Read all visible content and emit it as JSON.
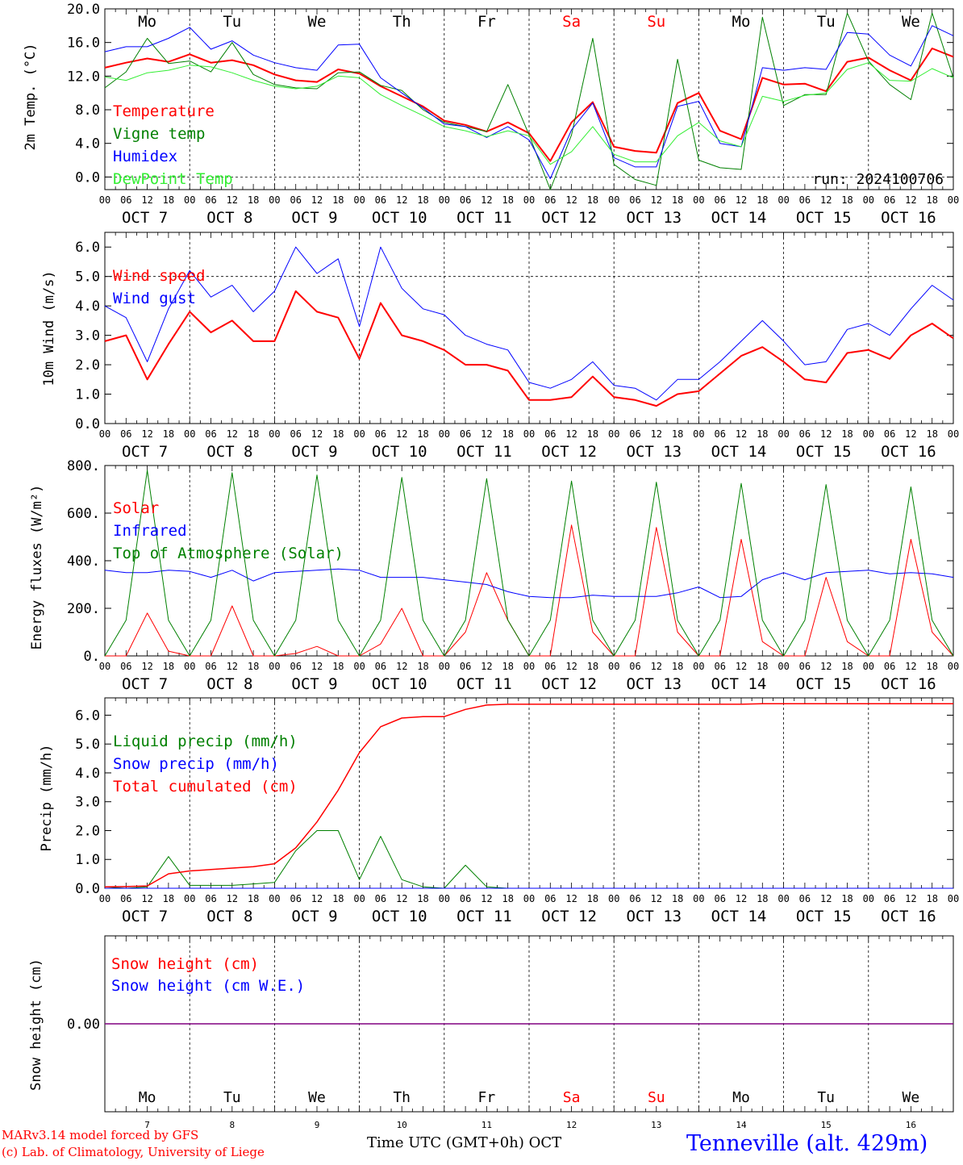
{
  "run_label": "run: 2024100706",
  "days_top": [
    {
      "label": "Mo",
      "color": "#000000"
    },
    {
      "label": "Tu",
      "color": "#000000"
    },
    {
      "label": "We",
      "color": "#000000"
    },
    {
      "label": "Th",
      "color": "#000000"
    },
    {
      "label": "Fr",
      "color": "#000000"
    },
    {
      "label": "Sa",
      "color": "#ff0000"
    },
    {
      "label": "Su",
      "color": "#ff0000"
    },
    {
      "label": "Mo",
      "color": "#000000"
    },
    {
      "label": "Tu",
      "color": "#000000"
    },
    {
      "label": "We",
      "color": "#000000"
    }
  ],
  "date_labels": [
    "OCT  7",
    "OCT  8",
    "OCT  9",
    "OCT 10",
    "OCT 11",
    "OCT 12",
    "OCT 13",
    "OCT 14",
    "OCT 15",
    "OCT 16"
  ],
  "hour_labels": [
    "00",
    "06",
    "12",
    "18"
  ],
  "day_numbers": [
    "7",
    "8",
    "9",
    "10",
    "11",
    "12",
    "13",
    "14",
    "15",
    "16"
  ],
  "xlabel": "Time UTC (GMT+0h)",
  "xlabel_month": "OCT",
  "footer_left_1": "MARv3.14 model forced by GFS",
  "footer_left_2": "(c) Lab. of Climatology, University of Liege",
  "station": "Tenneville (alt. 429m)",
  "chart_data": [
    {
      "type": "line",
      "ylabel": "2m Temp. (°C)",
      "ylim": [
        -1.5,
        20
      ],
      "yticks": [
        "20.0",
        "16.0",
        "12.0",
        "8.0",
        "4.0",
        "0.0"
      ],
      "yticks_values": [
        20,
        16,
        12,
        8,
        4,
        0
      ],
      "dashed_y": [
        0
      ],
      "x_hours": [
        0,
        6,
        12,
        18,
        24,
        30,
        36,
        42,
        48,
        54,
        60,
        66,
        72,
        78,
        84,
        90,
        96,
        102,
        108,
        114,
        120,
        126,
        132,
        138,
        144,
        150,
        156,
        162,
        168,
        174,
        180,
        186,
        192,
        198,
        204,
        210,
        216,
        222,
        228,
        234,
        240
      ],
      "series": [
        {
          "name": "Temperature",
          "color": "#ff0000",
          "width": 2,
          "values": [
            13,
            13.6,
            14.1,
            13.7,
            14.6,
            13.6,
            13.9,
            13.3,
            12.2,
            11.5,
            11.3,
            12.8,
            12.3,
            10.8,
            9.6,
            8.4,
            6.7,
            6.2,
            5.4,
            6.5,
            5.2,
            1.9,
            6.5,
            8.9,
            3.6,
            3.1,
            2.9,
            8.8,
            10,
            5.5,
            4.5,
            11.8,
            11,
            11.1,
            10.2,
            13.7,
            14.2,
            12.7,
            11.5,
            15.3,
            14.3
          ]
        },
        {
          "name": "Vigne temp",
          "color": "#008000",
          "width": 1,
          "values": [
            10.6,
            12.5,
            16.5,
            13.5,
            13.8,
            12.5,
            16.0,
            12.2,
            11.0,
            10.6,
            10.5,
            12.4,
            12.5,
            10.9,
            10.3,
            8.0,
            6.5,
            6.0,
            5.4,
            11.0,
            5.0,
            -1.5,
            5.0,
            16.5,
            1.5,
            -0.3,
            -1.0,
            14.0,
            2.0,
            1.1,
            0.9,
            19.0,
            8.5,
            9.8,
            9.8,
            19.5,
            13.8,
            11.0,
            9.2,
            19.5,
            11.8
          ]
        },
        {
          "name": "Humidex",
          "color": "#0000ff",
          "width": 1,
          "values": [
            14.9,
            15.5,
            15.5,
            16.5,
            17.8,
            15.2,
            16.2,
            14.5,
            13.6,
            13.0,
            12.7,
            15.7,
            15.8,
            11.8,
            10.0,
            8.2,
            6.3,
            6.0,
            4.7,
            6.0,
            4.4,
            -0.2,
            5.6,
            8.8,
            2.3,
            1.2,
            1.2,
            8.4,
            9.0,
            4.0,
            3.6,
            13.0,
            12.7,
            13.0,
            12.8,
            17.2,
            17.0,
            14.5,
            13.2,
            18.0,
            16.8
          ]
        },
        {
          "name": "DewPoint Temp",
          "color": "#33ee33",
          "width": 1,
          "values": [
            11.9,
            11.5,
            12.4,
            12.7,
            13.3,
            13.1,
            12.4,
            11.5,
            10.8,
            10.5,
            10.8,
            12.0,
            11.8,
            9.8,
            8.5,
            7.3,
            6.0,
            5.5,
            4.8,
            5.5,
            4.9,
            1.5,
            3.0,
            6.0,
            2.7,
            1.8,
            1.8,
            4.9,
            6.5,
            4.3,
            3.6,
            9.6,
            9.0,
            9.7,
            10.0,
            12.8,
            13.6,
            11.5,
            11.4,
            12.9,
            11.8
          ]
        }
      ]
    },
    {
      "type": "line",
      "ylabel": "10m Wind (m/s)",
      "ylim": [
        0,
        6.5
      ],
      "yticks": [
        "6.0",
        "5.0",
        "4.0",
        "3.0",
        "2.0",
        "1.0",
        "0.0"
      ],
      "yticks_values": [
        6,
        5,
        4,
        3,
        2,
        1,
        0
      ],
      "dashed_y": [
        5
      ],
      "x_hours": [
        0,
        6,
        12,
        18,
        24,
        30,
        36,
        42,
        48,
        54,
        60,
        66,
        72,
        78,
        84,
        90,
        96,
        102,
        108,
        114,
        120,
        126,
        132,
        138,
        144,
        150,
        156,
        162,
        168,
        174,
        180,
        186,
        192,
        198,
        204,
        210,
        216,
        222,
        228,
        234,
        240
      ],
      "series": [
        {
          "name": "Wind speed",
          "color": "#ff0000",
          "width": 2,
          "values": [
            2.8,
            3.0,
            1.5,
            2.7,
            3.8,
            3.1,
            3.5,
            2.8,
            2.8,
            4.5,
            3.8,
            3.6,
            2.2,
            4.1,
            3.0,
            2.8,
            2.5,
            2.0,
            2.0,
            1.8,
            0.8,
            0.8,
            0.9,
            1.6,
            0.9,
            0.8,
            0.6,
            1.0,
            1.1,
            1.7,
            2.3,
            2.6,
            2.1,
            1.5,
            1.4,
            2.4,
            2.5,
            2.2,
            3.0,
            3.4,
            2.9
          ]
        },
        {
          "name": "Wind gust",
          "color": "#0000ff",
          "width": 1,
          "values": [
            4.0,
            3.6,
            2.1,
            3.9,
            5.2,
            4.3,
            4.7,
            3.8,
            4.5,
            6.0,
            5.1,
            5.6,
            3.3,
            6.0,
            4.6,
            3.9,
            3.7,
            3.0,
            2.7,
            2.5,
            1.4,
            1.2,
            1.5,
            2.1,
            1.3,
            1.2,
            0.8,
            1.5,
            1.5,
            2.1,
            2.8,
            3.5,
            2.8,
            2.0,
            2.1,
            3.2,
            3.4,
            3.0,
            3.9,
            4.7,
            4.2
          ]
        }
      ]
    },
    {
      "type": "line",
      "ylabel": "Energy fluxes (W/m²)",
      "ylim": [
        0,
        800
      ],
      "yticks": [
        "800.",
        "600.",
        "400.",
        "200.",
        "0."
      ],
      "yticks_values": [
        800,
        600,
        400,
        200,
        0
      ],
      "dashed_y": [],
      "x_hours": [
        0,
        6,
        12,
        18,
        24,
        30,
        36,
        42,
        48,
        54,
        60,
        66,
        72,
        78,
        84,
        90,
        96,
        102,
        108,
        114,
        120,
        126,
        132,
        138,
        144,
        150,
        156,
        162,
        168,
        174,
        180,
        186,
        192,
        198,
        204,
        210,
        216,
        222,
        228,
        234,
        240
      ],
      "series": [
        {
          "name": "Solar",
          "color": "#ff0000",
          "width": 1,
          "values": [
            0,
            0,
            180,
            20,
            0,
            0,
            210,
            0,
            0,
            10,
            40,
            0,
            0,
            50,
            200,
            0,
            0,
            100,
            350,
            150,
            0,
            0,
            550,
            100,
            0,
            0,
            540,
            100,
            0,
            0,
            490,
            60,
            0,
            0,
            330,
            60,
            0,
            0,
            490,
            100,
            0
          ]
        },
        {
          "name": "Infrared",
          "color": "#0000ff",
          "width": 1,
          "values": [
            360,
            350,
            350,
            360,
            355,
            330,
            360,
            315,
            350,
            355,
            360,
            365,
            360,
            330,
            330,
            330,
            320,
            310,
            300,
            270,
            250,
            245,
            245,
            255,
            250,
            250,
            250,
            265,
            290,
            245,
            250,
            320,
            350,
            320,
            350,
            355,
            360,
            345,
            350,
            345,
            330
          ]
        },
        {
          "name": "Top of Atmosphere (Solar)",
          "color": "#008000",
          "width": 1,
          "values": [
            0,
            150,
            780,
            150,
            0,
            150,
            770,
            150,
            0,
            150,
            760,
            150,
            0,
            150,
            750,
            150,
            0,
            150,
            745,
            150,
            0,
            150,
            735,
            150,
            0,
            150,
            730,
            150,
            0,
            150,
            725,
            150,
            0,
            150,
            720,
            150,
            0,
            150,
            710,
            150,
            0
          ]
        }
      ]
    },
    {
      "type": "line",
      "ylabel": "Precip (mm/h)",
      "ylim": [
        0,
        6.6
      ],
      "yticks": [
        "6.0",
        "5.0",
        "4.0",
        "3.0",
        "2.0",
        "1.0",
        "0.0"
      ],
      "yticks_values": [
        6,
        5,
        4,
        3,
        2,
        1,
        0
      ],
      "dashed_y": [],
      "x_hours": [
        0,
        6,
        12,
        18,
        24,
        30,
        36,
        42,
        48,
        54,
        60,
        66,
        72,
        78,
        84,
        90,
        96,
        102,
        108,
        114,
        120,
        126,
        132,
        138,
        144,
        150,
        156,
        162,
        168,
        174,
        180,
        186,
        192,
        198,
        204,
        210,
        216,
        222,
        228,
        234,
        240
      ],
      "series": [
        {
          "name": "Liquid precip (mm/h)",
          "color": "#008000",
          "width": 1,
          "values": [
            0.05,
            0,
            0.05,
            1.1,
            0.1,
            0.1,
            0.1,
            0.15,
            0.2,
            1.3,
            2.0,
            2.0,
            0.3,
            1.8,
            0.3,
            0.05,
            0,
            0.8,
            0.05,
            0,
            0,
            0,
            0,
            0,
            0,
            0,
            0,
            0,
            0,
            0,
            0,
            0,
            0,
            0,
            0,
            0,
            0,
            0,
            0,
            0,
            0
          ]
        },
        {
          "name": "Snow precip (mm/h)",
          "color": "#0000ff",
          "width": 1,
          "values": [
            0,
            0,
            0,
            0,
            0,
            0,
            0,
            0,
            0,
            0,
            0,
            0,
            0,
            0,
            0,
            0,
            0,
            0,
            0,
            0,
            0,
            0,
            0,
            0,
            0,
            0,
            0,
            0,
            0,
            0,
            0,
            0,
            0,
            0,
            0,
            0,
            0,
            0,
            0,
            0,
            0
          ]
        },
        {
          "name": "Total cumulated (cm)",
          "color": "#ff0000",
          "width": 1.5,
          "values": [
            0.05,
            0.06,
            0.08,
            0.5,
            0.6,
            0.65,
            0.7,
            0.75,
            0.85,
            1.4,
            2.3,
            3.4,
            4.7,
            5.6,
            5.9,
            5.95,
            5.95,
            6.2,
            6.35,
            6.38,
            6.38,
            6.38,
            6.38,
            6.38,
            6.38,
            6.38,
            6.38,
            6.38,
            6.38,
            6.38,
            6.38,
            6.4,
            6.4,
            6.4,
            6.4,
            6.4,
            6.4,
            6.4,
            6.4,
            6.4,
            6.4
          ]
        }
      ]
    },
    {
      "type": "line",
      "ylabel": "Snow height (cm)",
      "ylim": [
        -1,
        1
      ],
      "yticks": [
        "0.00"
      ],
      "yticks_values": [
        0
      ],
      "dashed_y": [],
      "x_hours": [
        0,
        240
      ],
      "series": [
        {
          "name": "Snow height (cm)",
          "color": "#ff0000",
          "width": 1,
          "values": [
            0,
            0
          ]
        },
        {
          "name": "Snow height (cm W.E.)",
          "color": "#0000ff",
          "width": 1,
          "values": [
            0,
            0
          ]
        },
        {
          "name": "",
          "color": "#800080",
          "width": 1.5,
          "values": [
            0,
            0
          ]
        }
      ]
    }
  ]
}
